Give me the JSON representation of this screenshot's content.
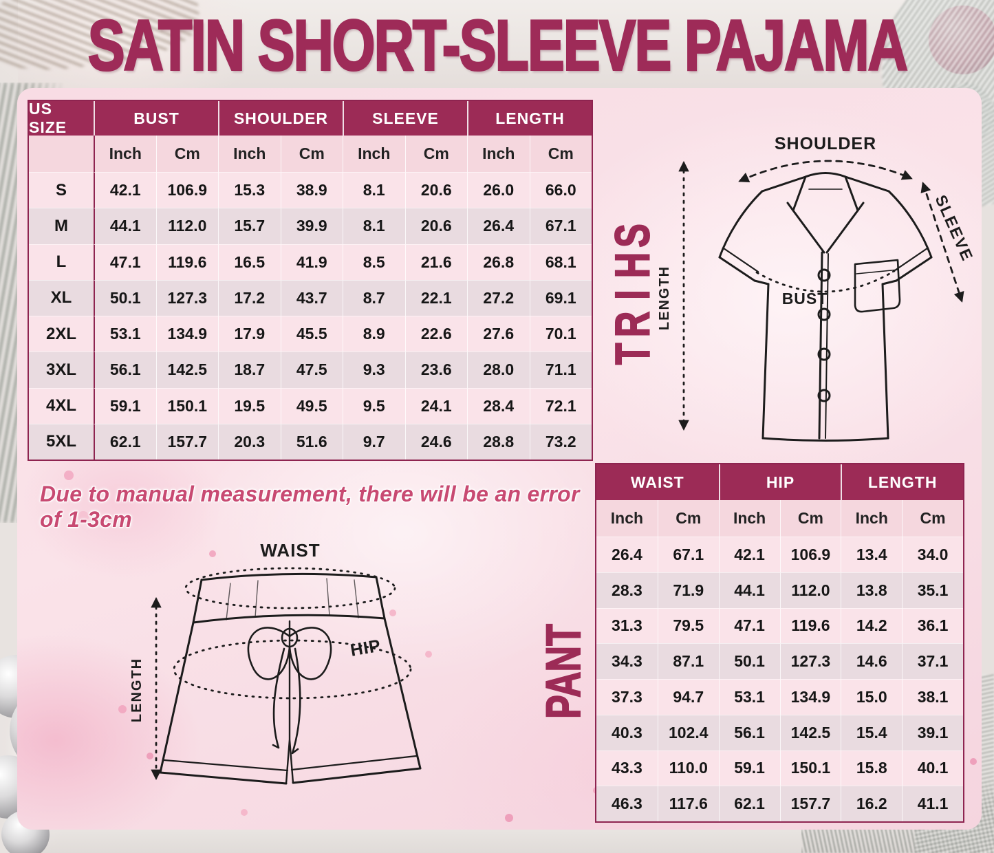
{
  "title": "SATIN SHORT-SLEEVE PAJAMA",
  "note": "Due to manual measurement, there will be an error of 1-3cm",
  "shirt_label": "SHIRT",
  "pant_label": "PANT",
  "colors": {
    "accent_magenta": "#9c2b56",
    "table_border": "#8e2450",
    "panel_pink": "#f8dce4",
    "row_light": "#fae3e9",
    "row_dark": "#e9dbe0",
    "note_pink": "#c84a72"
  },
  "shirt_table": {
    "size_header": "US SIZE",
    "groups": [
      "BUST",
      "SHOULDER",
      "SLEEVE",
      "LENGTH"
    ],
    "units": [
      "Inch",
      "Cm"
    ],
    "rows": [
      {
        "size": "S",
        "values": [
          "42.1",
          "106.9",
          "15.3",
          "38.9",
          "8.1",
          "20.6",
          "26.0",
          "66.0"
        ]
      },
      {
        "size": "M",
        "values": [
          "44.1",
          "112.0",
          "15.7",
          "39.9",
          "8.1",
          "20.6",
          "26.4",
          "67.1"
        ]
      },
      {
        "size": "L",
        "values": [
          "47.1",
          "119.6",
          "16.5",
          "41.9",
          "8.5",
          "21.6",
          "26.8",
          "68.1"
        ]
      },
      {
        "size": "XL",
        "values": [
          "50.1",
          "127.3",
          "17.2",
          "43.7",
          "8.7",
          "22.1",
          "27.2",
          "69.1"
        ]
      },
      {
        "size": "2XL",
        "values": [
          "53.1",
          "134.9",
          "17.9",
          "45.5",
          "8.9",
          "22.6",
          "27.6",
          "70.1"
        ]
      },
      {
        "size": "3XL",
        "values": [
          "56.1",
          "142.5",
          "18.7",
          "47.5",
          "9.3",
          "23.6",
          "28.0",
          "71.1"
        ]
      },
      {
        "size": "4XL",
        "values": [
          "59.1",
          "150.1",
          "19.5",
          "49.5",
          "9.5",
          "24.1",
          "28.4",
          "72.1"
        ]
      },
      {
        "size": "5XL",
        "values": [
          "62.1",
          "157.7",
          "20.3",
          "51.6",
          "9.7",
          "24.6",
          "28.8",
          "73.2"
        ]
      }
    ]
  },
  "pant_table": {
    "groups": [
      "WAIST",
      "HIP",
      "LENGTH"
    ],
    "units": [
      "Inch",
      "Cm"
    ],
    "rows": [
      [
        "26.4",
        "67.1",
        "42.1",
        "106.9",
        "13.4",
        "34.0"
      ],
      [
        "28.3",
        "71.9",
        "44.1",
        "112.0",
        "13.8",
        "35.1"
      ],
      [
        "31.3",
        "79.5",
        "47.1",
        "119.6",
        "14.2",
        "36.1"
      ],
      [
        "34.3",
        "87.1",
        "50.1",
        "127.3",
        "14.6",
        "37.1"
      ],
      [
        "37.3",
        "94.7",
        "53.1",
        "134.9",
        "15.0",
        "38.1"
      ],
      [
        "40.3",
        "102.4",
        "56.1",
        "142.5",
        "15.4",
        "39.1"
      ],
      [
        "43.3",
        "110.0",
        "59.1",
        "150.1",
        "15.8",
        "40.1"
      ],
      [
        "46.3",
        "117.6",
        "62.1",
        "157.7",
        "16.2",
        "41.1"
      ]
    ]
  },
  "shirt_diagram": {
    "shoulder": "SHOULDER",
    "sleeve": "SLEEVE",
    "length": "LENGTH",
    "bust": "BUST"
  },
  "pant_diagram": {
    "waist": "WAIST",
    "hip": "HIP",
    "length": "LENGTH"
  }
}
